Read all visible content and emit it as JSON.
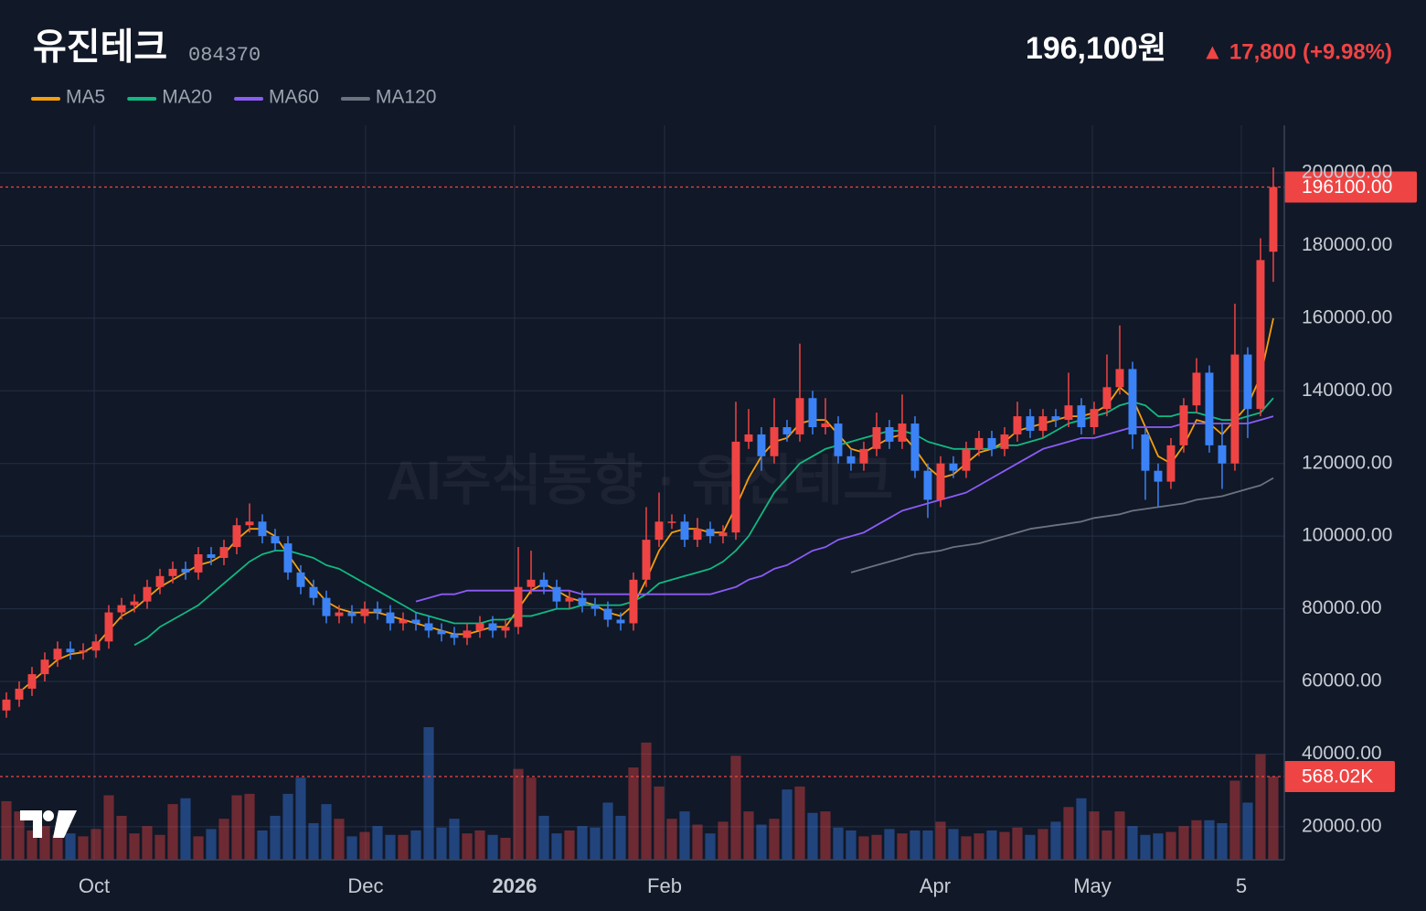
{
  "header": {
    "title": "유진테크",
    "code": "084370",
    "price": "196,100원",
    "change": "▲ 17,800 (+9.98%)"
  },
  "chart_data": {
    "type": "candlestick",
    "watermark": "AI주식동향 · 유진테크",
    "up_color": "#ef4444",
    "down_color": "#3b82f6",
    "grid": true,
    "xlim": [
      -0.5,
      99.86
    ],
    "ylim": [
      10900,
      213100
    ],
    "volume_lim": [
      0,
      5012000
    ],
    "xticks": [
      {
        "value": 6.86,
        "label": "Oct"
      },
      {
        "value": 28.07,
        "label": "Dec"
      },
      {
        "value": 39.71,
        "label": "2026"
      },
      {
        "value": 51.43,
        "label": "Feb"
      },
      {
        "value": 72.57,
        "label": "Apr"
      },
      {
        "value": 84.86,
        "label": "May"
      },
      {
        "value": 96.5,
        "label": "5"
      }
    ],
    "yticks": [
      {
        "value": 20000,
        "label": "20000.00"
      },
      {
        "value": 40000,
        "label": "40000.00"
      },
      {
        "value": 60000,
        "label": "60000.00"
      },
      {
        "value": 80000,
        "label": "80000.00"
      },
      {
        "value": 100000,
        "label": "100000.00"
      },
      {
        "value": 120000,
        "label": "120000.00"
      },
      {
        "value": 140000,
        "label": "140000.00"
      },
      {
        "value": 160000,
        "label": "160000.00"
      },
      {
        "value": 180000,
        "label": "180000.00"
      },
      {
        "value": 200000,
        "label": "200000.00"
      }
    ],
    "last_price": {
      "value": 196100,
      "label": "196100.00"
    },
    "last_volume": {
      "value": 568020,
      "label": "568.02K"
    },
    "open": [
      52000,
      55000,
      58000,
      62000,
      66000,
      69000,
      68000,
      68500,
      71000,
      79000,
      81000,
      82000,
      86000,
      89000,
      91000,
      90000,
      95000,
      94000,
      97000,
      103000,
      104000,
      100000,
      98000,
      90000,
      86000,
      83000,
      78000,
      79000,
      78000,
      80000,
      79000,
      76000,
      77000,
      76000,
      74000,
      73000,
      72000,
      74000,
      76000,
      74000,
      75000,
      86000,
      88000,
      86000,
      82000,
      83000,
      81000,
      80000,
      77000,
      76000,
      88000,
      99000,
      104000,
      104000,
      99000,
      102000,
      100000,
      101000,
      126000,
      128000,
      122000,
      130000,
      128000,
      138000,
      130000,
      131000,
      122000,
      120000,
      124000,
      130000,
      126000,
      131000,
      118000,
      110000,
      120000,
      118000,
      124000,
      127000,
      124000,
      128000,
      133000,
      129000,
      133000,
      132000,
      136000,
      130000,
      135000,
      141000,
      146000,
      128000,
      118000,
      115000,
      125000,
      136000,
      145000,
      125000,
      120000,
      150000,
      135000,
      178300
    ],
    "high": [
      57000,
      60000,
      64000,
      68000,
      71000,
      71000,
      70500,
      73000,
      81000,
      83000,
      84000,
      88000,
      91000,
      93000,
      93000,
      97000,
      97000,
      99000,
      105000,
      109000,
      106000,
      102000,
      100000,
      92000,
      88000,
      85000,
      81000,
      81000,
      82000,
      82000,
      81000,
      79000,
      79000,
      78000,
      76000,
      75000,
      76000,
      78000,
      78000,
      77000,
      97000,
      96000,
      90000,
      88000,
      85000,
      85000,
      83000,
      82000,
      79000,
      90000,
      108000,
      112000,
      106000,
      106000,
      105000,
      104000,
      103000,
      137000,
      135000,
      130000,
      138000,
      132000,
      153000,
      140000,
      138000,
      133000,
      124000,
      126000,
      134000,
      132000,
      139000,
      133000,
      120000,
      122000,
      122000,
      126000,
      129000,
      129000,
      130000,
      137000,
      135000,
      135000,
      135000,
      145000,
      138000,
      137000,
      150000,
      158000,
      148000,
      130000,
      120000,
      127000,
      138000,
      149000,
      147000,
      131000,
      164000,
      152000,
      182000,
      201500
    ],
    "low": [
      50000,
      53000,
      56000,
      60000,
      64000,
      66000,
      66000,
      66500,
      69000,
      77000,
      79000,
      80000,
      84000,
      87000,
      88000,
      88000,
      92000,
      92000,
      95000,
      101000,
      98000,
      96000,
      88000,
      84000,
      81000,
      76000,
      76000,
      76000,
      76000,
      77000,
      74000,
      74000,
      74000,
      72000,
      71000,
      70000,
      70000,
      72000,
      72000,
      72000,
      73000,
      84000,
      84000,
      80000,
      80000,
      79000,
      78000,
      75000,
      74000,
      74000,
      86000,
      97000,
      102000,
      97000,
      97000,
      98000,
      98000,
      99000,
      124000,
      118000,
      120000,
      126000,
      126000,
      128000,
      128000,
      120000,
      118000,
      118000,
      122000,
      124000,
      124000,
      116000,
      105000,
      108000,
      116000,
      116000,
      122000,
      122000,
      122000,
      126000,
      127000,
      127000,
      130000,
      130000,
      128000,
      128000,
      133000,
      139000,
      124000,
      110000,
      108000,
      113000,
      123000,
      134000,
      123000,
      113000,
      118000,
      127000,
      133000,
      170000
    ],
    "close": [
      55000,
      58000,
      62000,
      66000,
      69000,
      68000,
      68500,
      71000,
      79000,
      81000,
      82000,
      86000,
      89000,
      91000,
      90000,
      95000,
      94000,
      97000,
      103000,
      104000,
      100000,
      98000,
      90000,
      86000,
      83000,
      78000,
      79000,
      78000,
      80000,
      79000,
      76000,
      77000,
      76000,
      74000,
      73000,
      72000,
      74000,
      76000,
      74000,
      75000,
      86000,
      88000,
      86000,
      82000,
      83000,
      81000,
      80000,
      77000,
      76000,
      88000,
      99000,
      104000,
      104000,
      99000,
      102000,
      100000,
      101000,
      126000,
      128000,
      122000,
      130000,
      128000,
      138000,
      130000,
      131000,
      122000,
      120000,
      124000,
      130000,
      126000,
      131000,
      118000,
      110000,
      120000,
      118000,
      124000,
      127000,
      124000,
      128000,
      133000,
      129000,
      133000,
      132000,
      136000,
      130000,
      135000,
      141000,
      146000,
      128000,
      118000,
      115000,
      125000,
      136000,
      145000,
      125000,
      120000,
      150000,
      135000,
      176000,
      196100
    ],
    "volume": [
      400000,
      330000,
      200000,
      230000,
      170000,
      180000,
      160000,
      210000,
      440000,
      300000,
      180000,
      230000,
      170000,
      380000,
      420000,
      160000,
      210000,
      280000,
      440000,
      450000,
      200000,
      300000,
      450000,
      560000,
      250000,
      380000,
      280000,
      160000,
      190000,
      230000,
      170000,
      170000,
      200000,
      905000,
      220000,
      280000,
      180000,
      200000,
      170000,
      150000,
      620000,
      560000,
      300000,
      180000,
      200000,
      230000,
      220000,
      390000,
      300000,
      630000,
      800000,
      500000,
      280000,
      330000,
      240000,
      180000,
      260000,
      710000,
      330000,
      240000,
      280000,
      480000,
      500000,
      320000,
      330000,
      220000,
      200000,
      160000,
      170000,
      210000,
      180000,
      200000,
      200000,
      260000,
      210000,
      160000,
      180000,
      200000,
      190000,
      220000,
      170000,
      210000,
      260000,
      360000,
      420000,
      330000,
      200000,
      330000,
      230000,
      170000,
      180000,
      190000,
      230000,
      270000,
      270000,
      250000,
      540000,
      390000,
      720000,
      568020
    ],
    "series": [
      {
        "name": "MA5",
        "color": "#f59e0b",
        "values": [
          null,
          57000,
          60000,
          63000,
          66000,
          67500,
          68000,
          70000,
          74000,
          78000,
          80000,
          83000,
          86000,
          88000,
          90000,
          92000,
          93000,
          95000,
          99000,
          102000,
          102000,
          100000,
          95000,
          90000,
          86000,
          82000,
          80000,
          79000,
          79000,
          79000,
          78000,
          77000,
          76000,
          75000,
          74000,
          73000,
          73000,
          74000,
          75000,
          75000,
          80000,
          85000,
          87000,
          85000,
          83000,
          82000,
          81000,
          79000,
          78000,
          81000,
          88000,
          96000,
          101000,
          102000,
          102000,
          101000,
          101000,
          108000,
          116000,
          122000,
          126000,
          127000,
          131000,
          132000,
          132000,
          128000,
          124000,
          123000,
          125000,
          127000,
          128000,
          124000,
          119000,
          116000,
          117000,
          120000,
          123000,
          124000,
          126000,
          129000,
          130000,
          131000,
          132000,
          133000,
          133000,
          134000,
          136000,
          141000,
          138000,
          130000,
          122000,
          120000,
          125000,
          132000,
          131000,
          128000,
          132000,
          136000,
          144000,
          160000
        ]
      },
      {
        "name": "MA20",
        "color": "#10b981",
        "values": [
          null,
          null,
          null,
          null,
          null,
          null,
          null,
          null,
          null,
          null,
          70000,
          72000,
          75000,
          77000,
          79000,
          81000,
          84000,
          87000,
          90000,
          93000,
          95000,
          96000,
          96000,
          95000,
          94000,
          92000,
          91000,
          89000,
          87000,
          85000,
          83000,
          81000,
          79000,
          78000,
          77000,
          76000,
          76000,
          76000,
          77000,
          77000,
          78000,
          78000,
          79000,
          80000,
          80000,
          81000,
          81000,
          81000,
          81000,
          82000,
          84000,
          87000,
          88000,
          89000,
          90000,
          91000,
          93000,
          96000,
          100000,
          106000,
          112000,
          116000,
          120000,
          122000,
          124000,
          125000,
          126000,
          127000,
          128000,
          129000,
          129000,
          128000,
          126000,
          125000,
          124000,
          124000,
          124000,
          124000,
          125000,
          125000,
          126000,
          127000,
          129000,
          131000,
          132000,
          133000,
          134000,
          136000,
          137000,
          136000,
          133000,
          133000,
          134000,
          134000,
          133000,
          132000,
          132000,
          133000,
          134000,
          138000
        ]
      },
      {
        "name": "MA60",
        "color": "#8b5cf6",
        "values": [
          null,
          null,
          null,
          null,
          null,
          null,
          null,
          null,
          null,
          null,
          null,
          null,
          null,
          null,
          null,
          null,
          null,
          null,
          null,
          null,
          null,
          null,
          null,
          null,
          null,
          null,
          null,
          null,
          null,
          null,
          null,
          null,
          82000,
          83000,
          84000,
          84000,
          85000,
          85000,
          85000,
          85000,
          85000,
          85000,
          85000,
          85000,
          85000,
          84000,
          84000,
          84000,
          84000,
          84000,
          84000,
          84000,
          84000,
          84000,
          84000,
          84000,
          85000,
          86000,
          88000,
          89000,
          91000,
          92000,
          94000,
          96000,
          97000,
          99000,
          100000,
          101000,
          103000,
          105000,
          107000,
          108000,
          109000,
          110000,
          111000,
          112000,
          114000,
          116000,
          118000,
          120000,
          122000,
          124000,
          125000,
          126000,
          127000,
          127000,
          128000,
          129000,
          130000,
          130000,
          130000,
          130000,
          131000,
          131000,
          131000,
          131000,
          131000,
          131000,
          132000,
          133000
        ]
      },
      {
        "name": "MA120",
        "color": "#6b7280",
        "values": [
          null,
          null,
          null,
          null,
          null,
          null,
          null,
          null,
          null,
          null,
          null,
          null,
          null,
          null,
          null,
          null,
          null,
          null,
          null,
          null,
          null,
          null,
          null,
          null,
          null,
          null,
          null,
          null,
          null,
          null,
          null,
          null,
          null,
          null,
          null,
          null,
          null,
          null,
          null,
          null,
          null,
          null,
          null,
          null,
          null,
          null,
          null,
          null,
          null,
          null,
          null,
          null,
          null,
          null,
          null,
          null,
          null,
          null,
          null,
          null,
          null,
          null,
          null,
          null,
          null,
          null,
          90000,
          91000,
          92000,
          93000,
          94000,
          95000,
          95500,
          96000,
          97000,
          97500,
          98000,
          99000,
          100000,
          101000,
          102000,
          102500,
          103000,
          103500,
          104000,
          105000,
          105500,
          106000,
          107000,
          107500,
          108000,
          108500,
          109000,
          110000,
          110500,
          111000,
          112000,
          113000,
          114000,
          116000
        ]
      }
    ]
  }
}
